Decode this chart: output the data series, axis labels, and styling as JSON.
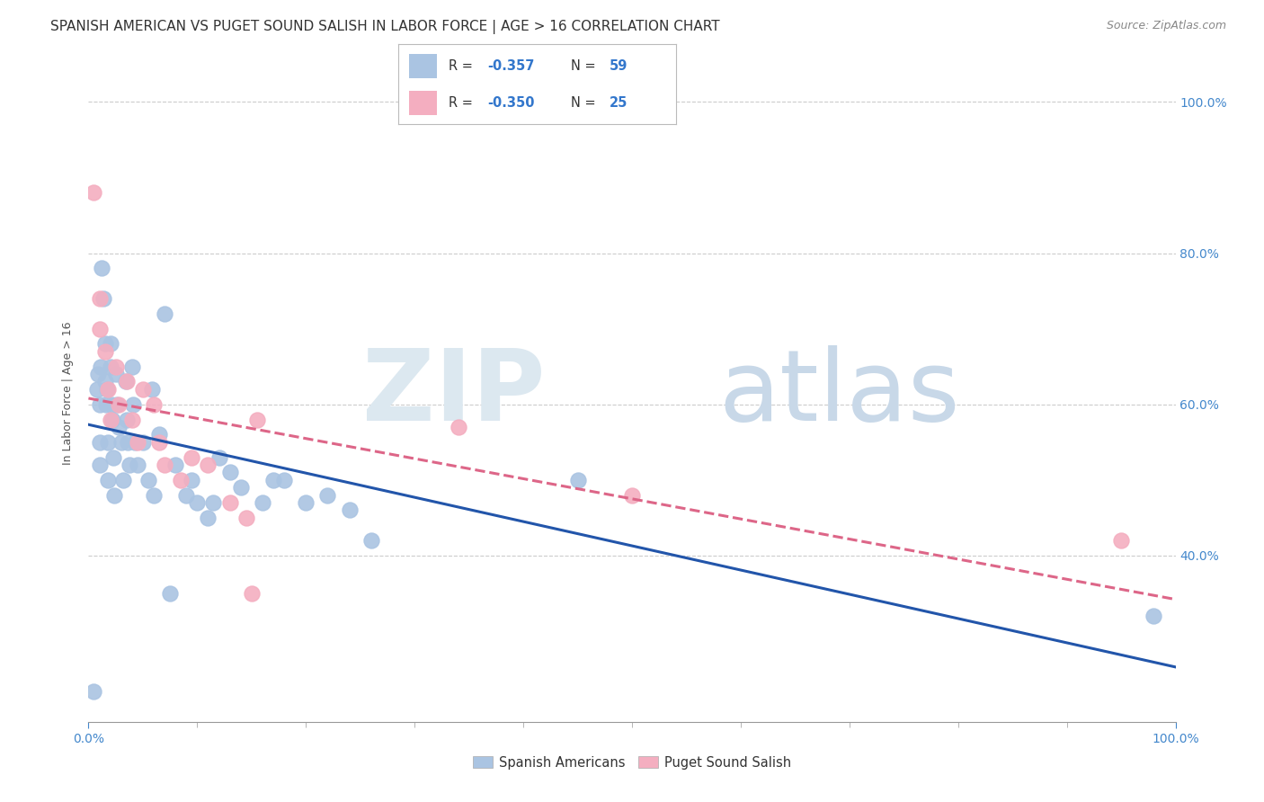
{
  "title": "SPANISH AMERICAN VS PUGET SOUND SALISH IN LABOR FORCE | AGE > 16 CORRELATION CHART",
  "source": "Source: ZipAtlas.com",
  "ylabel": "In Labor Force | Age > 16",
  "xlim": [
    0.0,
    1.0
  ],
  "ylim": [
    0.18,
    1.05
  ],
  "xtick_labels_left": [
    "0.0%"
  ],
  "xtick_vals_left": [
    0.0
  ],
  "xtick_labels_right": [
    "100.0%"
  ],
  "xtick_vals_right": [
    1.0
  ],
  "ytick_labels": [
    "40.0%",
    "60.0%",
    "80.0%",
    "100.0%"
  ],
  "ytick_vals": [
    0.4,
    0.6,
    0.8,
    1.0
  ],
  "blue_color": "#aac4e2",
  "pink_color": "#f4aec0",
  "blue_line_color": "#2255aa",
  "pink_line_color": "#dd6688",
  "legend_blue_color": "#aac4e2",
  "legend_pink_color": "#f4aec0",
  "R_blue": -0.357,
  "N_blue": 59,
  "R_pink": -0.35,
  "N_pink": 25,
  "blue_scatter_x": [
    0.005,
    0.008,
    0.009,
    0.01,
    0.01,
    0.01,
    0.011,
    0.012,
    0.014,
    0.015,
    0.015,
    0.016,
    0.017,
    0.018,
    0.018,
    0.02,
    0.02,
    0.021,
    0.022,
    0.023,
    0.024,
    0.025,
    0.026,
    0.028,
    0.03,
    0.032,
    0.034,
    0.035,
    0.036,
    0.038,
    0.04,
    0.041,
    0.043,
    0.045,
    0.05,
    0.055,
    0.058,
    0.06,
    0.065,
    0.07,
    0.075,
    0.08,
    0.09,
    0.095,
    0.1,
    0.11,
    0.115,
    0.12,
    0.13,
    0.14,
    0.16,
    0.17,
    0.18,
    0.2,
    0.22,
    0.24,
    0.26,
    0.45,
    0.98
  ],
  "blue_scatter_y": [
    0.22,
    0.62,
    0.64,
    0.55,
    0.52,
    0.6,
    0.65,
    0.78,
    0.74,
    0.68,
    0.63,
    0.6,
    0.62,
    0.55,
    0.5,
    0.68,
    0.65,
    0.6,
    0.58,
    0.53,
    0.48,
    0.64,
    0.6,
    0.57,
    0.55,
    0.5,
    0.63,
    0.58,
    0.55,
    0.52,
    0.65,
    0.6,
    0.55,
    0.52,
    0.55,
    0.5,
    0.62,
    0.48,
    0.56,
    0.72,
    0.35,
    0.52,
    0.48,
    0.5,
    0.47,
    0.45,
    0.47,
    0.53,
    0.51,
    0.49,
    0.47,
    0.5,
    0.5,
    0.47,
    0.48,
    0.46,
    0.42,
    0.5,
    0.32
  ],
  "pink_scatter_x": [
    0.005,
    0.01,
    0.01,
    0.015,
    0.018,
    0.02,
    0.025,
    0.028,
    0.035,
    0.04,
    0.045,
    0.05,
    0.06,
    0.065,
    0.07,
    0.085,
    0.095,
    0.11,
    0.13,
    0.145,
    0.15,
    0.155,
    0.34,
    0.5,
    0.95
  ],
  "pink_scatter_y": [
    0.88,
    0.74,
    0.7,
    0.67,
    0.62,
    0.58,
    0.65,
    0.6,
    0.63,
    0.58,
    0.55,
    0.62,
    0.6,
    0.55,
    0.52,
    0.5,
    0.53,
    0.52,
    0.47,
    0.45,
    0.35,
    0.58,
    0.57,
    0.48,
    0.42
  ],
  "grid_color": "#cccccc",
  "background_color": "#ffffff",
  "title_fontsize": 11,
  "source_fontsize": 9,
  "axis_label_fontsize": 9,
  "tick_fontsize": 10,
  "legend_fontsize": 10,
  "tick_color": "#4488cc",
  "text_color": "#333333"
}
